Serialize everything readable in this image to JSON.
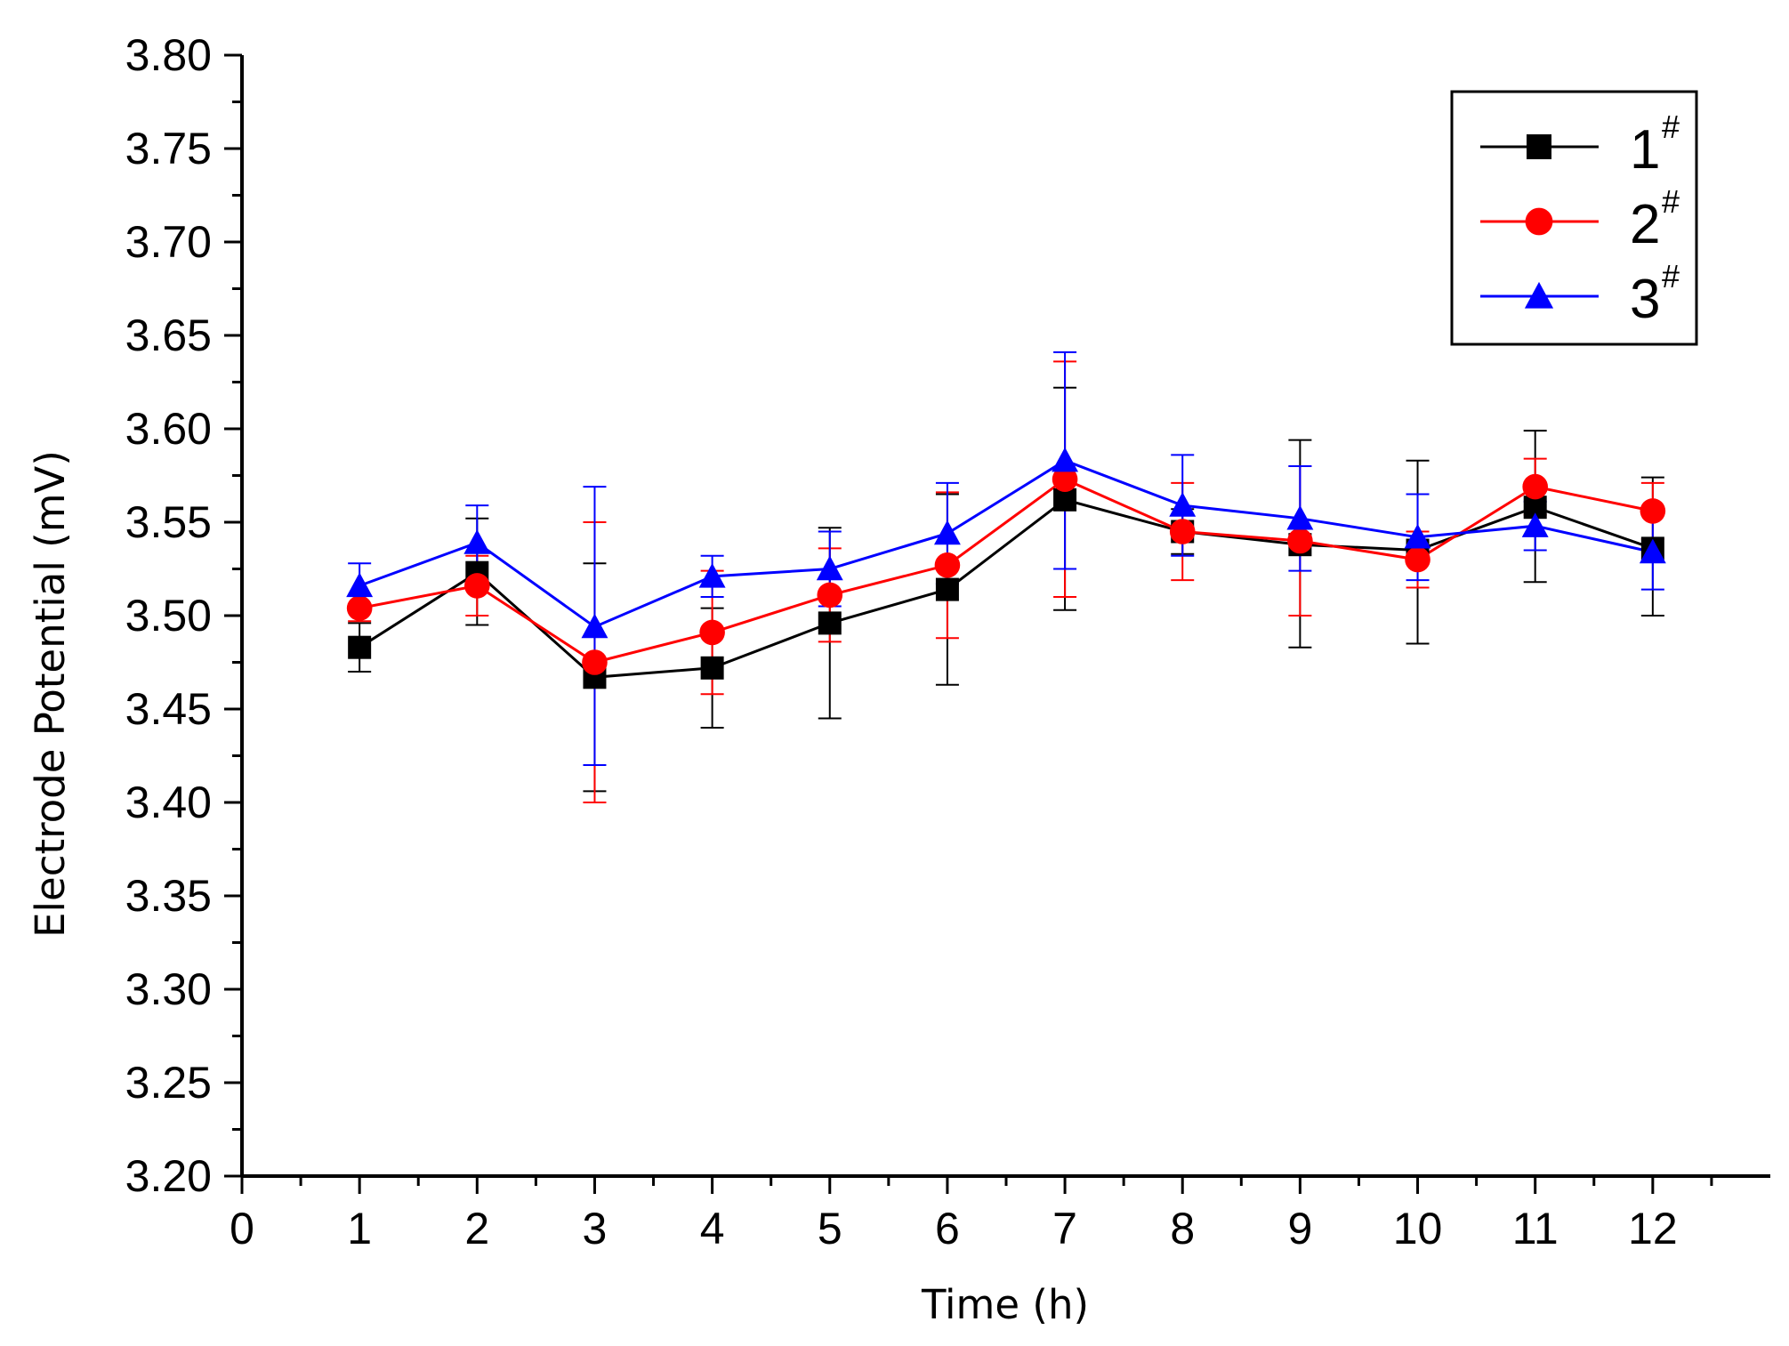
{
  "chart_data": {
    "type": "line",
    "title": "",
    "xlabel": "Time (h)",
    "ylabel": "Electrode Potential (mV)",
    "xlim": [
      0,
      13
    ],
    "ylim": [
      3.2,
      3.8
    ],
    "x_ticks": [
      0,
      1,
      2,
      3,
      4,
      5,
      6,
      7,
      8,
      9,
      10,
      11,
      12
    ],
    "y_ticks": [
      3.2,
      3.25,
      3.3,
      3.35,
      3.4,
      3.45,
      3.5,
      3.55,
      3.6,
      3.65,
      3.7,
      3.75,
      3.8
    ],
    "y_tick_labels": [
      "3.20",
      "3.25",
      "3.30",
      "3.35",
      "3.40",
      "3.45",
      "3.50",
      "3.55",
      "3.60",
      "3.65",
      "3.70",
      "3.75",
      "3.80"
    ],
    "grid": false,
    "legend_position": "top-right",
    "x": [
      1,
      2,
      3,
      4,
      5,
      6,
      7,
      8,
      9,
      10,
      11,
      12
    ],
    "series": [
      {
        "name": "1",
        "name_sup": "#",
        "color": "#000000",
        "marker": "square",
        "values": [
          3.483,
          3.523,
          3.467,
          3.472,
          3.496,
          3.514,
          3.562,
          3.545,
          3.538,
          3.535,
          3.558,
          3.536
        ],
        "err_low": [
          3.47,
          3.495,
          3.406,
          3.44,
          3.445,
          3.463,
          3.503,
          3.533,
          3.483,
          3.485,
          3.518,
          3.5
        ],
        "err_high": [
          3.496,
          3.552,
          3.528,
          3.504,
          3.547,
          3.565,
          3.622,
          3.557,
          3.594,
          3.583,
          3.599,
          3.574
        ]
      },
      {
        "name": "2",
        "name_sup": "#",
        "color": "#ff0000",
        "marker": "circle",
        "values": [
          3.504,
          3.516,
          3.475,
          3.491,
          3.511,
          3.527,
          3.573,
          3.545,
          3.54,
          3.53,
          3.569,
          3.556
        ],
        "err_low": [
          3.497,
          3.5,
          3.4,
          3.458,
          3.486,
          3.488,
          3.51,
          3.519,
          3.5,
          3.515,
          3.554,
          3.541
        ],
        "err_high": [
          3.511,
          3.532,
          3.55,
          3.524,
          3.536,
          3.566,
          3.636,
          3.571,
          3.58,
          3.545,
          3.584,
          3.571
        ]
      },
      {
        "name": "3",
        "name_sup": "#",
        "color": "#0000ff",
        "marker": "triangle",
        "values": [
          3.516,
          3.539,
          3.494,
          3.521,
          3.525,
          3.544,
          3.583,
          3.559,
          3.552,
          3.542,
          3.548,
          3.534
        ],
        "err_low": [
          3.504,
          3.519,
          3.42,
          3.51,
          3.505,
          3.517,
          3.525,
          3.532,
          3.524,
          3.519,
          3.535,
          3.514
        ],
        "err_high": [
          3.528,
          3.559,
          3.569,
          3.532,
          3.545,
          3.571,
          3.641,
          3.586,
          3.58,
          3.565,
          3.561,
          3.554
        ]
      }
    ]
  }
}
